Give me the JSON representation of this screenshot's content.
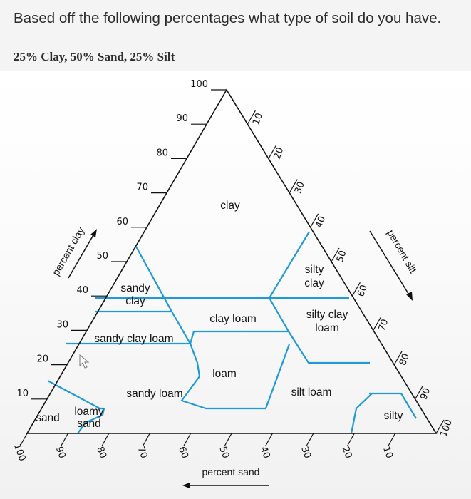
{
  "question": "Based off the following percentages what type of soil do you have.",
  "given": "25% Clay, 50% Sand, 25% Silt",
  "diagram": {
    "clay_ticks": [
      "10",
      "20",
      "30",
      "40",
      "50",
      "60",
      "70",
      "80",
      "90",
      "100"
    ],
    "silt_ticks": [
      "10",
      "20",
      "30",
      "40",
      "50",
      "60",
      "70",
      "80",
      "90",
      "100"
    ],
    "sand_ticks": [
      "100",
      "90",
      "80",
      "70",
      "60",
      "50",
      "40",
      "30",
      "20",
      "10"
    ],
    "axis_titles": {
      "clay": "percent clay",
      "silt": "percent silt",
      "sand": "percent sand"
    },
    "regions": {
      "clay": "clay",
      "silty_clay_1": "silty",
      "silty_clay_2": "clay",
      "sandy_clay_1": "sandy",
      "sandy_clay_2": "clay",
      "clay_loam": "clay loam",
      "silty_clay_loam_1": "silty clay",
      "silty_clay_loam_2": "loam",
      "sandy_clay_loam": "sandy clay loam",
      "loam": "loam",
      "sandy_loam": "sandy loam",
      "silt_loam": "silt loam",
      "loamy_sand_1": "loamy",
      "loamy_sand_2": "sand",
      "sand": "sand",
      "silt": "silty"
    },
    "colors": {
      "outline": "#111111",
      "boundary": "#1f9ad6"
    }
  }
}
